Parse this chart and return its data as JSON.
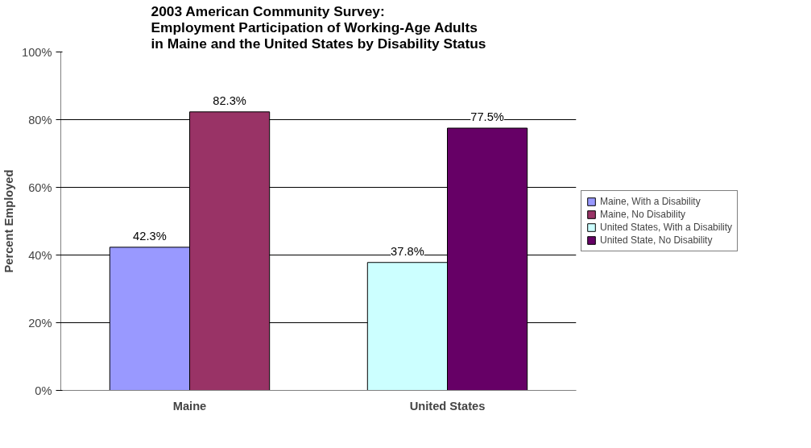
{
  "chart_data": {
    "type": "bar",
    "title": "2003 American Community Survey:\nEmployment Participation of Working-Age Adults\nin Maine and the United States by Disability Status",
    "ylabel": "Percent Employed",
    "categories": [
      "Maine",
      "United States"
    ],
    "series": [
      {
        "name": "Maine, With a Disability",
        "color": "#9999ff",
        "values": [
          42.3,
          null
        ],
        "value_labels": [
          "42.3%",
          null
        ]
      },
      {
        "name": "Maine, No Disability",
        "color": "#993366",
        "values": [
          82.3,
          null
        ],
        "value_labels": [
          "82.3%",
          null
        ]
      },
      {
        "name": "United States, With a Disability",
        "color": "#ccffff",
        "values": [
          null,
          37.8
        ],
        "value_labels": [
          null,
          "37.8%"
        ]
      },
      {
        "name": "United State, No Disability",
        "color": "#660066",
        "values": [
          null,
          77.5
        ],
        "value_labels": [
          null,
          "77.5%"
        ]
      }
    ],
    "ylim": [
      0,
      100
    ],
    "yticks": [
      {
        "value": 0,
        "label": "0%"
      },
      {
        "value": 20,
        "label": "20%"
      },
      {
        "value": 40,
        "label": "40%"
      },
      {
        "value": 60,
        "label": "60%"
      },
      {
        "value": 80,
        "label": "80%"
      },
      {
        "value": 100,
        "label": "100%"
      }
    ],
    "grid": "y",
    "legend": "right"
  }
}
